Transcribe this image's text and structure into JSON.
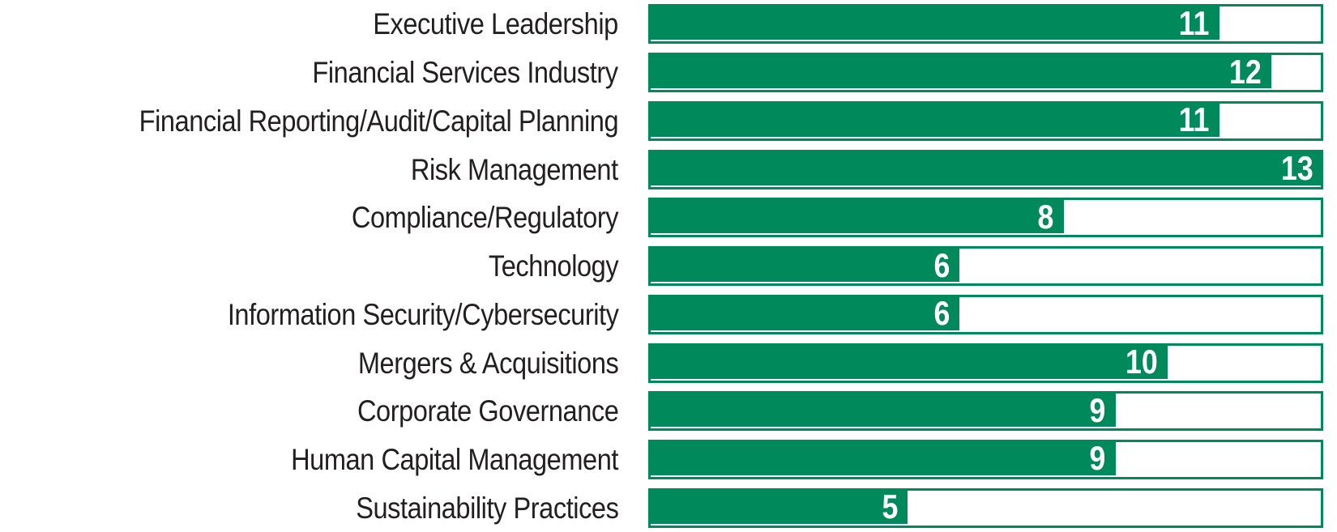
{
  "chart_data": {
    "type": "bar",
    "orientation": "horizontal",
    "title": "",
    "xlabel": "",
    "ylabel": "",
    "xlim": [
      0,
      13
    ],
    "grid": false,
    "legend": false,
    "value_labels_position": "inside-end",
    "categories": [
      "Executive Leadership",
      "Financial Services Industry",
      "Financial Reporting/Audit/Capital Planning",
      "Risk Management",
      "Compliance/Regulatory",
      "Technology",
      "Information Security/Cybersecurity",
      "Mergers & Acquisitions",
      "Corporate Governance",
      "Human Capital Management",
      "Sustainability Practices"
    ],
    "values": [
      11,
      12,
      11,
      13,
      8,
      6,
      6,
      10,
      9,
      9,
      5
    ],
    "colors": {
      "bar_fill": "#008A5C",
      "bar_border": "#008A5C",
      "track_background": "#ffffff",
      "category_text": "#231f20",
      "value_text": "#ffffff"
    }
  }
}
